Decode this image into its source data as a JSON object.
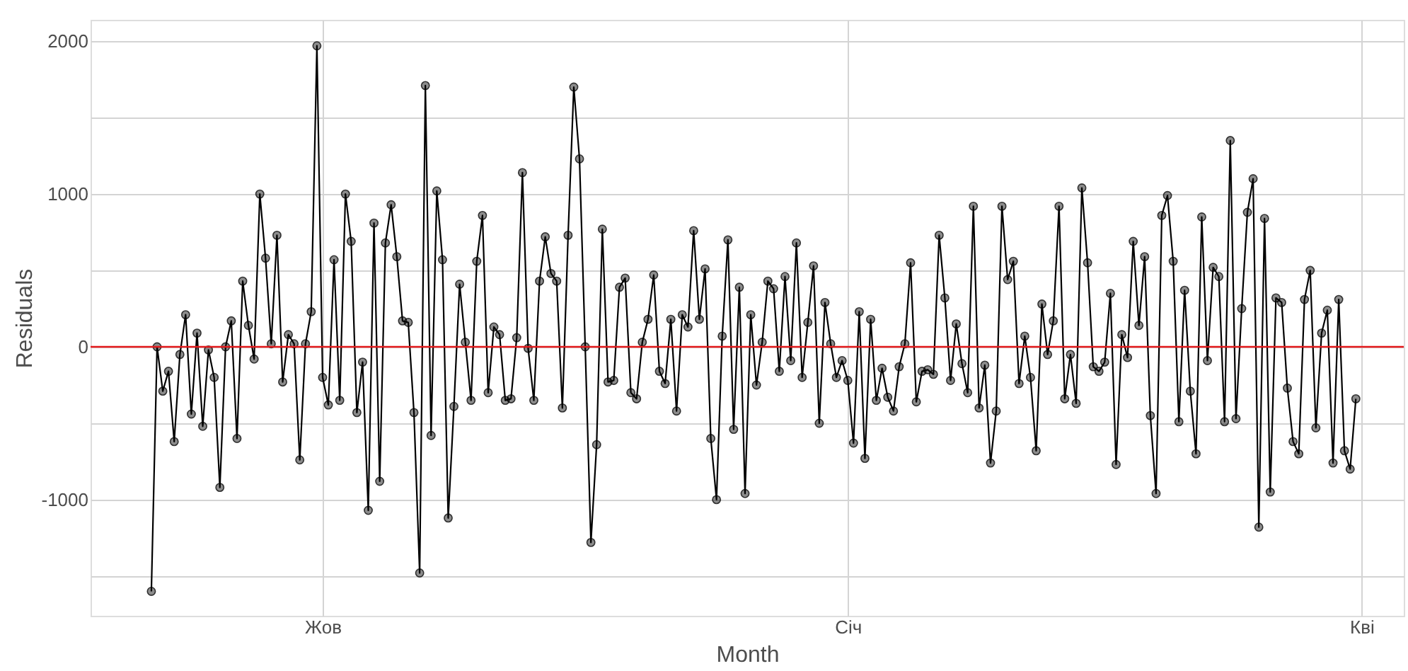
{
  "chart_data": {
    "type": "line",
    "xlabel": "Month",
    "ylabel": "Residuals",
    "ylim": [
      -1760,
      2140
    ],
    "yticks": [
      {
        "value": -1500,
        "label": null
      },
      -1000,
      {
        "value": -500,
        "label": null
      },
      0,
      {
        "value": 500,
        "label": null
      },
      1000,
      {
        "value": 1500,
        "label": null
      },
      2000
    ],
    "grid": true,
    "marker": "circle",
    "line_style": "solid",
    "ref_lines": [
      {
        "axis": "y",
        "value": 0,
        "label": null,
        "color": "#e31a1c"
      }
    ],
    "categories": [
      null,
      null,
      null,
      null,
      null,
      null,
      null,
      null,
      null,
      null,
      null,
      null,
      null,
      null,
      null,
      null,
      null,
      null,
      null,
      null,
      null,
      null,
      null,
      null,
      null,
      null,
      null,
      null,
      null,
      null,
      "Жов",
      null,
      null,
      null,
      null,
      null,
      null,
      null,
      null,
      null,
      null,
      null,
      null,
      null,
      null,
      null,
      null,
      null,
      null,
      null,
      null,
      null,
      null,
      null,
      null,
      null,
      null,
      null,
      null,
      null,
      null,
      null,
      null,
      null,
      null,
      null,
      null,
      null,
      null,
      null,
      null,
      null,
      null,
      null,
      null,
      null,
      null,
      null,
      null,
      null,
      null,
      null,
      null,
      null,
      null,
      null,
      null,
      null,
      null,
      null,
      null,
      null,
      null,
      null,
      null,
      null,
      null,
      null,
      null,
      null,
      null,
      null,
      null,
      null,
      null,
      null,
      null,
      null,
      null,
      null,
      null,
      null,
      null,
      null,
      null,
      null,
      null,
      null,
      null,
      null,
      null,
      null,
      "Січ",
      null,
      null,
      null,
      null,
      null,
      null,
      null,
      null,
      null,
      null,
      null,
      null,
      null,
      null,
      null,
      null,
      null,
      null,
      null,
      null,
      null,
      null,
      null,
      null,
      null,
      null,
      null,
      null,
      null,
      null,
      null,
      null,
      null,
      null,
      null,
      null,
      null,
      null,
      null,
      null,
      null,
      null,
      null,
      null,
      null,
      null,
      null,
      null,
      null,
      null,
      null,
      null,
      null,
      null,
      null,
      null,
      null,
      null,
      null,
      null,
      null,
      null,
      null,
      null,
      null,
      null,
      null,
      null,
      null,
      null,
      null,
      null,
      null,
      null,
      null,
      null,
      null,
      null,
      null,
      null,
      null,
      null,
      null,
      null,
      null,
      null,
      null,
      null,
      null,
      "Кві"
    ],
    "series": [
      {
        "color": "#000000",
        "values": [
          -1600,
          0,
          -290,
          -160,
          -620,
          -50,
          210,
          -440,
          90,
          -520,
          -20,
          -200,
          -920,
          0,
          170,
          -600,
          430,
          140,
          -80,
          1000,
          580,
          20,
          730,
          -230,
          80,
          20,
          -740,
          20,
          230,
          1970,
          -200,
          -380,
          570,
          -350,
          1000,
          690,
          -430,
          -100,
          -1070,
          810,
          -880,
          680,
          930,
          590,
          170,
          160,
          -430,
          -1480,
          1710,
          -580,
          1020,
          570,
          -1120,
          -390,
          410,
          30,
          -350,
          560,
          860,
          -300,
          130,
          80,
          -350,
          -340,
          60,
          1140,
          -10,
          -350,
          430,
          720,
          480,
          430,
          -400,
          730,
          1700,
          1230,
          0,
          -1280,
          -640,
          770,
          -230,
          -220,
          390,
          450,
          -300,
          -340,
          30,
          180,
          470,
          -160,
          -240,
          180,
          -420,
          210,
          130,
          760,
          180,
          510,
          -600,
          -1000,
          70,
          700,
          -540,
          390,
          -960,
          210,
          -250,
          30,
          430,
          380,
          -160,
          460,
          -90,
          680,
          -200,
          160,
          530,
          -500,
          290,
          20,
          -200,
          -90,
          -220,
          -630,
          230,
          -730,
          180,
          -350,
          -140,
          -330,
          -420,
          -130,
          20,
          550,
          -360,
          -160,
          -150,
          -180,
          730,
          320,
          -220,
          150,
          -110,
          -300,
          920,
          -400,
          -120,
          -760,
          -420,
          920,
          440,
          560,
          -240,
          70,
          -200,
          -680,
          280,
          -50,
          170,
          920,
          -340,
          -50,
          -370,
          1040,
          550,
          -130,
          -160,
          -100,
          350,
          -770,
          80,
          -70,
          690,
          140,
          590,
          -450,
          -960,
          860,
          990,
          560,
          -490,
          370,
          -290,
          -700,
          850,
          -90,
          520,
          460,
          -490,
          1350,
          -470,
          250,
          880,
          1100,
          -1180,
          840,
          -950,
          320,
          290,
          -270,
          -620,
          -700,
          310,
          500,
          -530,
          90,
          240,
          -760,
          310,
          -680,
          -800,
          -340,
          null
        ]
      }
    ]
  }
}
